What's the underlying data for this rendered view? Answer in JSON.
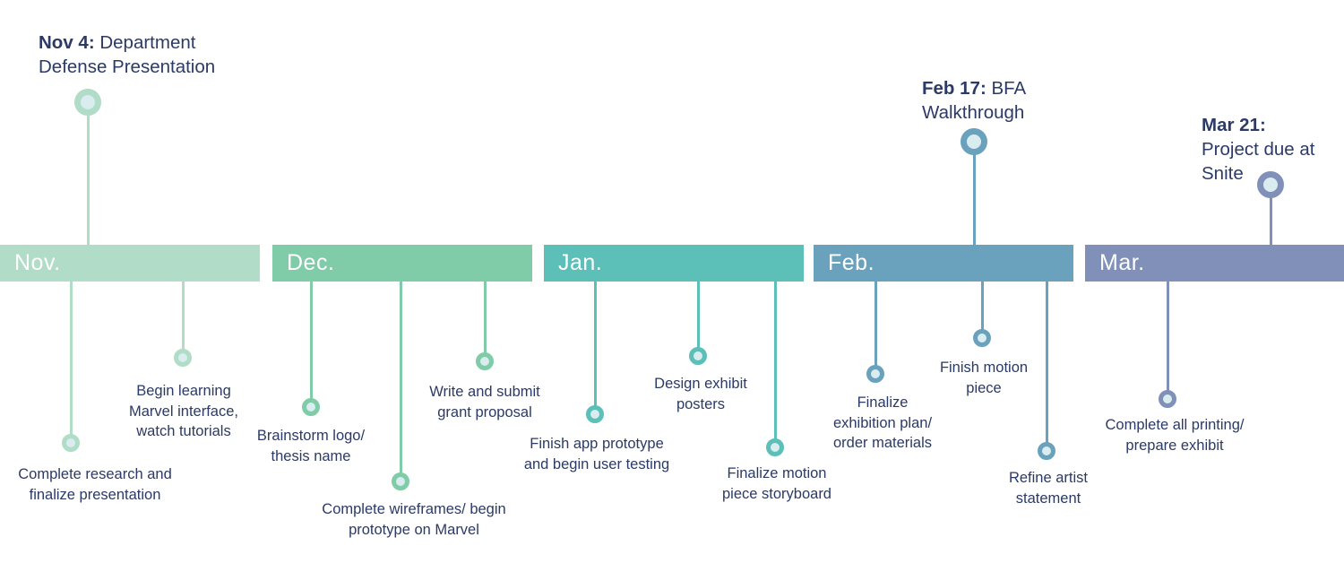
{
  "colors": {
    "nov": "#b1dcc7",
    "dec": "#80cba8",
    "jan": "#5cbfb8",
    "feb": "#6aa2bd",
    "mar": "#8090b8",
    "text": "#2b3a66"
  },
  "months": [
    {
      "label": "Nov."
    },
    {
      "label": "Dec."
    },
    {
      "label": "Jan."
    },
    {
      "label": "Feb."
    },
    {
      "label": "Mar."
    }
  ],
  "milestones": [
    {
      "date": "Nov 4:",
      "text": "Department Defense Presentation"
    },
    {
      "date": "Feb 17:",
      "text": "BFA Walkthrough"
    },
    {
      "date": "Mar 21:",
      "text": "Project due at Snite"
    }
  ],
  "tasks": [
    {
      "month": "nov",
      "lines": [
        "Complete research and",
        "finalize presentation"
      ]
    },
    {
      "month": "nov",
      "lines": [
        "Begin learning",
        "Marvel interface,",
        "watch tutorials"
      ]
    },
    {
      "month": "dec",
      "lines": [
        "Brainstorm logo/",
        "thesis name"
      ]
    },
    {
      "month": "dec",
      "lines": [
        "Complete wireframes/ begin",
        "prototype on Marvel"
      ]
    },
    {
      "month": "dec",
      "lines": [
        "Write and submit",
        "grant proposal"
      ]
    },
    {
      "month": "jan",
      "lines": [
        "Finish app prototype",
        "and begin user testing"
      ]
    },
    {
      "month": "jan",
      "lines": [
        "Design exhibit",
        "posters"
      ]
    },
    {
      "month": "jan",
      "lines": [
        "Finalize motion",
        "piece storyboard"
      ]
    },
    {
      "month": "feb",
      "lines": [
        "Finalize",
        "exhibition plan/",
        "order materials"
      ]
    },
    {
      "month": "feb",
      "lines": [
        "Finish motion",
        "piece"
      ]
    },
    {
      "month": "feb",
      "lines": [
        "Refine artist",
        "statement"
      ]
    },
    {
      "month": "mar",
      "lines": [
        "Complete all printing/",
        "prepare exhibit"
      ]
    }
  ]
}
